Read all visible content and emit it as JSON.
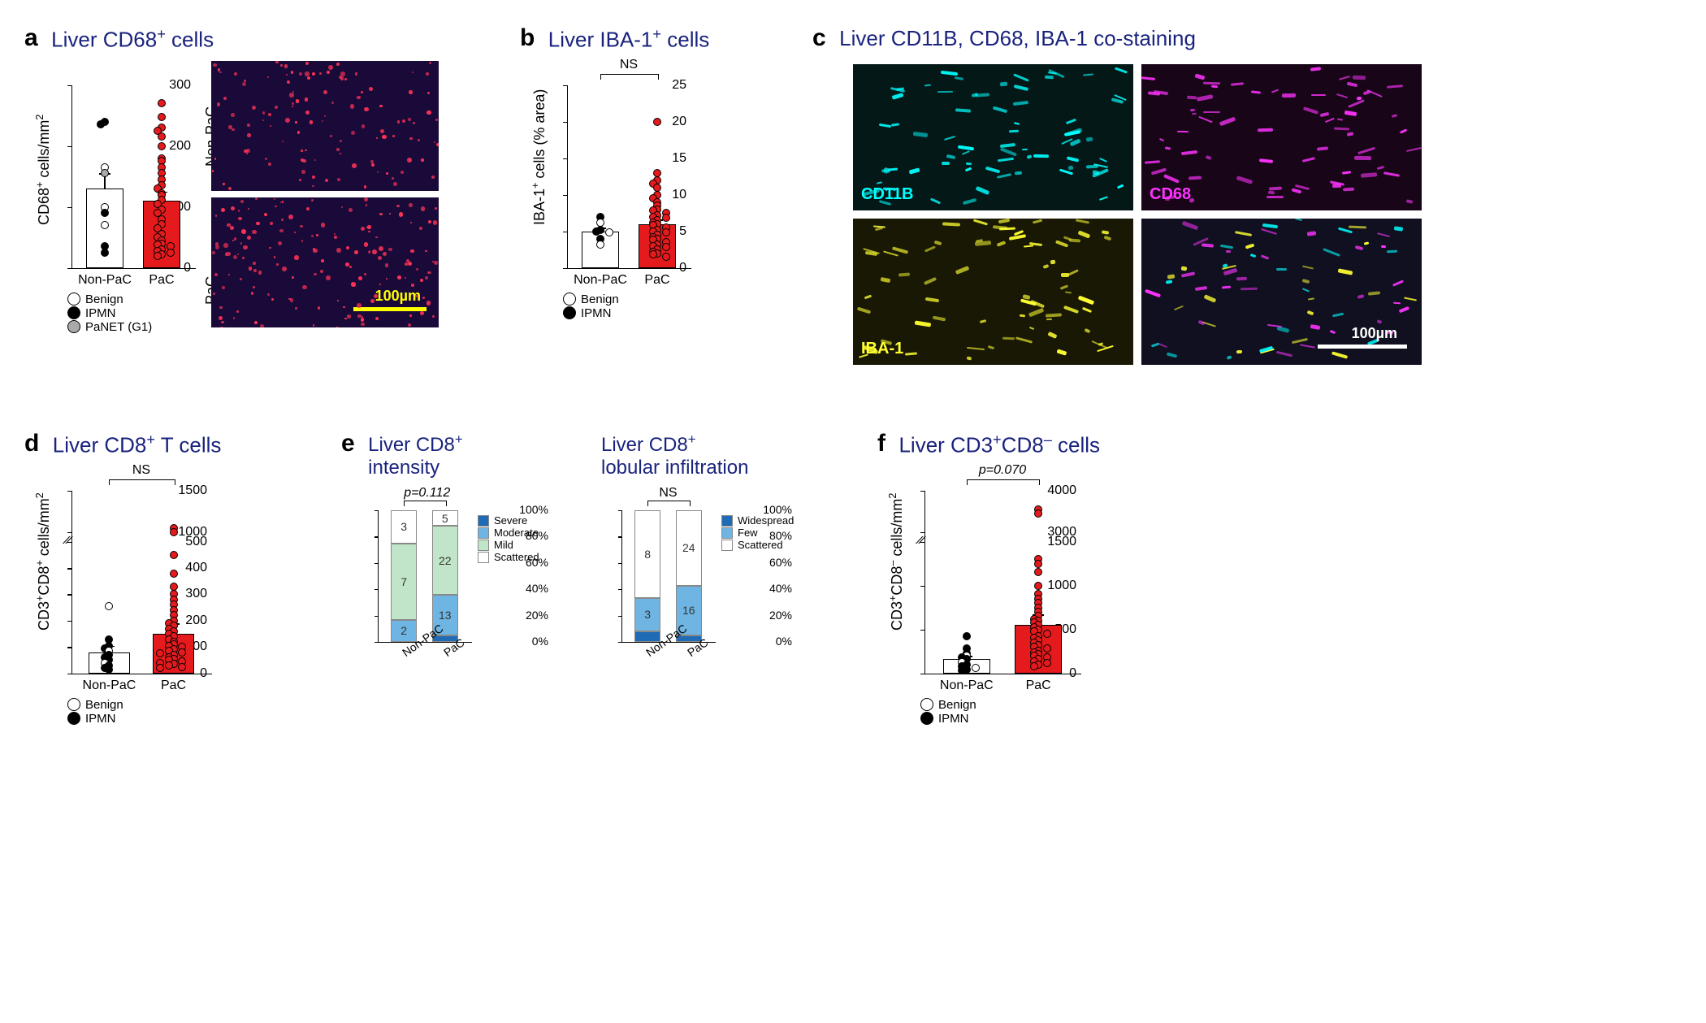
{
  "panel_a": {
    "label": "a",
    "title": "Liver CD68⁺ cells",
    "chart": {
      "ylabel": "CD68⁺ cells/mm²",
      "ylim": [
        0,
        300
      ],
      "ytick_step": 100,
      "categories": [
        "Non-PaC",
        "PaC"
      ],
      "bars": [
        {
          "value": 130,
          "fill": "#ffffff",
          "err": 25
        },
        {
          "value": 110,
          "fill": "#e41a1c",
          "err": 15
        }
      ],
      "points_nonpac": [
        {
          "y": 240,
          "fill": "#000"
        },
        {
          "y": 235,
          "fill": "#000"
        },
        {
          "y": 165,
          "fill": "#fff"
        },
        {
          "y": 155,
          "fill": "#aaa"
        },
        {
          "y": 100,
          "fill": "#fff"
        },
        {
          "y": 90,
          "fill": "#000"
        },
        {
          "y": 70,
          "fill": "#fff"
        },
        {
          "y": 35,
          "fill": "#000"
        },
        {
          "y": 25,
          "fill": "#000"
        }
      ],
      "points_pac": [
        {
          "y": 270
        },
        {
          "y": 248
        },
        {
          "y": 230
        },
        {
          "y": 225
        },
        {
          "y": 215
        },
        {
          "y": 200
        },
        {
          "y": 180
        },
        {
          "y": 175
        },
        {
          "y": 165
        },
        {
          "y": 155
        },
        {
          "y": 145
        },
        {
          "y": 135
        },
        {
          "y": 130
        },
        {
          "y": 122
        },
        {
          "y": 120
        },
        {
          "y": 112
        },
        {
          "y": 105
        },
        {
          "y": 95
        },
        {
          "y": 90
        },
        {
          "y": 80
        },
        {
          "y": 72
        },
        {
          "y": 65
        },
        {
          "y": 55
        },
        {
          "y": 50
        },
        {
          "y": 45
        },
        {
          "y": 40
        },
        {
          "y": 38
        },
        {
          "y": 35
        },
        {
          "y": 30
        },
        {
          "y": 28
        },
        {
          "y": 25
        },
        {
          "y": 22
        },
        {
          "y": 20
        }
      ],
      "pac_point_fill": "#e41a1c",
      "legend": [
        {
          "fill": "#ffffff",
          "label": "Benign"
        },
        {
          "fill": "#000000",
          "label": "IPMN"
        },
        {
          "fill": "#aaaaaa",
          "label": "PaNET (G1)"
        }
      ]
    },
    "micrographs": {
      "top_label": "Non-PaC",
      "bottom_label": "PaC",
      "bg": "#1a0a3a",
      "dot_color": "#ff3355",
      "scale_bar_color": "#ffff00",
      "scale_text": "100µm"
    }
  },
  "panel_b": {
    "label": "b",
    "title": "Liver IBA-1⁺ cells",
    "chart": {
      "ylabel": "IBA-1⁺ cells (% area)",
      "ylim": [
        0,
        25
      ],
      "ytick_step": 5,
      "categories": [
        "Non-PaC",
        "PaC"
      ],
      "sig": "NS",
      "bars": [
        {
          "value": 5.0,
          "fill": "#ffffff",
          "err": 0.5
        },
        {
          "value": 6.0,
          "fill": "#e41a1c",
          "err": 0.6
        }
      ],
      "points_nonpac": [
        {
          "y": 7.0,
          "fill": "#000"
        },
        {
          "y": 6.2,
          "fill": "#fff"
        },
        {
          "y": 5.2,
          "fill": "#000"
        },
        {
          "y": 5.0,
          "fill": "#000"
        },
        {
          "y": 4.8,
          "fill": "#fff"
        },
        {
          "y": 4.0,
          "fill": "#000"
        },
        {
          "y": 3.2,
          "fill": "#fff"
        }
      ],
      "points_pac": [
        {
          "y": 20
        },
        {
          "y": 13
        },
        {
          "y": 12
        },
        {
          "y": 11.5
        },
        {
          "y": 11
        },
        {
          "y": 10
        },
        {
          "y": 9.5
        },
        {
          "y": 9
        },
        {
          "y": 8.5
        },
        {
          "y": 8
        },
        {
          "y": 7.8
        },
        {
          "y": 7.5
        },
        {
          "y": 7.2
        },
        {
          "y": 7
        },
        {
          "y": 6.8
        },
        {
          "y": 6.5
        },
        {
          "y": 6.2
        },
        {
          "y": 6
        },
        {
          "y": 5.8
        },
        {
          "y": 5.5
        },
        {
          "y": 5.2
        },
        {
          "y": 5
        },
        {
          "y": 4.8
        },
        {
          "y": 4.5
        },
        {
          "y": 4.2
        },
        {
          "y": 4
        },
        {
          "y": 3.8
        },
        {
          "y": 3.5
        },
        {
          "y": 3.2
        },
        {
          "y": 3
        },
        {
          "y": 2.8
        },
        {
          "y": 2.5
        },
        {
          "y": 2.2
        },
        {
          "y": 2
        },
        {
          "y": 1.8
        },
        {
          "y": 1.5
        }
      ],
      "pac_point_fill": "#e41a1c",
      "legend": [
        {
          "fill": "#ffffff",
          "label": "Benign"
        },
        {
          "fill": "#000000",
          "label": "IPMN"
        }
      ]
    }
  },
  "panel_c": {
    "label": "c",
    "title": "Liver CD11B, CD68, IBA-1 co-staining",
    "panels": [
      {
        "label": "CD11B",
        "color": "#00ffff",
        "bg": "#051818"
      },
      {
        "label": "CD68",
        "color": "#ff33ff",
        "bg": "#180518"
      },
      {
        "label": "IBA-1",
        "color": "#ffff33",
        "bg": "#181805"
      },
      {
        "label": "",
        "color": "#ffffff",
        "bg": "#101020"
      }
    ],
    "scale_text": "100µm",
    "scale_bar_color": "#ffffff"
  },
  "panel_d": {
    "label": "d",
    "title": "Liver CD8⁺ T cells",
    "chart": {
      "ylabel": "CD3⁺CD8⁺ cells/mm²",
      "yticks": [
        0,
        100,
        200,
        300,
        400,
        500,
        1000,
        1500
      ],
      "break_at": 500,
      "categories": [
        "Non-PaC",
        "PaC"
      ],
      "sig": "NS",
      "bars": [
        {
          "value": 80,
          "fill": "#ffffff",
          "err": 25
        },
        {
          "value": 150,
          "fill": "#e41a1c",
          "err": 40
        }
      ],
      "points_nonpac": [
        {
          "y": 255,
          "fill": "#fff"
        },
        {
          "y": 130,
          "fill": "#000"
        },
        {
          "y": 105,
          "fill": "#000"
        },
        {
          "y": 95,
          "fill": "#000"
        },
        {
          "y": 85,
          "fill": "#fff"
        },
        {
          "y": 70,
          "fill": "#000"
        },
        {
          "y": 60,
          "fill": "#000"
        },
        {
          "y": 50,
          "fill": "#000"
        },
        {
          "y": 40,
          "fill": "#fff"
        },
        {
          "y": 30,
          "fill": "#000"
        },
        {
          "y": 20,
          "fill": "#000"
        },
        {
          "y": 15,
          "fill": "#000"
        }
      ],
      "points_pac": [
        {
          "y": 1050
        },
        {
          "y": 1000
        },
        {
          "y": 450
        },
        {
          "y": 380
        },
        {
          "y": 330
        },
        {
          "y": 300
        },
        {
          "y": 280
        },
        {
          "y": 260
        },
        {
          "y": 240
        },
        {
          "y": 220
        },
        {
          "y": 200
        },
        {
          "y": 190
        },
        {
          "y": 180
        },
        {
          "y": 170
        },
        {
          "y": 160
        },
        {
          "y": 150
        },
        {
          "y": 140
        },
        {
          "y": 130
        },
        {
          "y": 120
        },
        {
          "y": 110
        },
        {
          "y": 105
        },
        {
          "y": 100
        },
        {
          "y": 90
        },
        {
          "y": 85
        },
        {
          "y": 80
        },
        {
          "y": 75
        },
        {
          "y": 70
        },
        {
          "y": 60
        },
        {
          "y": 55
        },
        {
          "y": 50
        },
        {
          "y": 45
        },
        {
          "y": 40
        },
        {
          "y": 35
        },
        {
          "y": 30
        },
        {
          "y": 25
        },
        {
          "y": 20
        }
      ],
      "pac_point_fill": "#e41a1c",
      "legend": [
        {
          "fill": "#ffffff",
          "label": "Benign"
        },
        {
          "fill": "#000000",
          "label": "IPMN"
        }
      ]
    }
  },
  "panel_e": {
    "label": "e",
    "title1": "Liver CD8⁺ intensity",
    "title2": "Liver CD8⁺ lobular infiltration",
    "chart1": {
      "ytick_step": 20,
      "categories": [
        "Non-PaC",
        "PaC"
      ],
      "sig": "p=0.112",
      "colors": {
        "Severe": "#1f6bb5",
        "Moderate": "#6fb5e3",
        "Mild": "#c1e5c9",
        "Scattered": "#ffffff"
      },
      "legend": [
        "Severe",
        "Moderate",
        "Mild",
        "Scattered"
      ],
      "stacks": [
        {
          "segs": [
            {
              "k": "Severe",
              "n": 0,
              "p": 0
            },
            {
              "k": "Moderate",
              "n": 2,
              "p": 16.7
            },
            {
              "k": "Mild",
              "n": 7,
              "p": 58.3
            },
            {
              "k": "Scattered",
              "n": 3,
              "p": 25
            }
          ]
        },
        {
          "segs": [
            {
              "k": "Severe",
              "n": 2,
              "p": 4.8
            },
            {
              "k": "Moderate",
              "n": 13,
              "p": 31
            },
            {
              "k": "Mild",
              "n": 22,
              "p": 52.3
            },
            {
              "k": "Scattered",
              "n": 5,
              "p": 11.9
            }
          ]
        }
      ]
    },
    "chart2": {
      "ytick_step": 20,
      "categories": [
        "Non-PaC",
        "PaC"
      ],
      "sig": "NS",
      "colors": {
        "Widespread": "#1f6bb5",
        "Few": "#6fb5e3",
        "Scattered": "#ffffff"
      },
      "legend": [
        "Widespread",
        "Few",
        "Scattered"
      ],
      "stacks": [
        {
          "segs": [
            {
              "k": "Widespread",
              "n": 1,
              "p": 8.3
            },
            {
              "k": "Few",
              "n": 3,
              "p": 25
            },
            {
              "k": "Scattered",
              "n": 8,
              "p": 66.7
            }
          ]
        },
        {
          "segs": [
            {
              "k": "Widespread",
              "n": 2,
              "p": 4.8
            },
            {
              "k": "Few",
              "n": 16,
              "p": 38.1
            },
            {
              "k": "Scattered",
              "n": 24,
              "p": 57.1
            }
          ]
        }
      ]
    }
  },
  "panel_f": {
    "label": "f",
    "title": "Liver CD3⁺CD8⁻ cells",
    "chart": {
      "ylabel": "CD3⁺CD8⁻ cells/mm²",
      "yticks": [
        0,
        500,
        1000,
        1500,
        3000,
        4000
      ],
      "break_at": 1500,
      "categories": [
        "Non-PaC",
        "PaC"
      ],
      "sig": "p=0.070",
      "bars": [
        {
          "value": 160,
          "fill": "#ffffff",
          "err": 40
        },
        {
          "value": 550,
          "fill": "#e41a1c",
          "err": 120
        }
      ],
      "points_nonpac": [
        {
          "y": 420,
          "fill": "#000"
        },
        {
          "y": 280,
          "fill": "#000"
        },
        {
          "y": 230,
          "fill": "#000"
        },
        {
          "y": 200,
          "fill": "#fff"
        },
        {
          "y": 180,
          "fill": "#000"
        },
        {
          "y": 160,
          "fill": "#000"
        },
        {
          "y": 130,
          "fill": "#fff"
        },
        {
          "y": 100,
          "fill": "#000"
        },
        {
          "y": 80,
          "fill": "#000"
        },
        {
          "y": 60,
          "fill": "#fff"
        },
        {
          "y": 40,
          "fill": "#000"
        },
        {
          "y": 30,
          "fill": "#000"
        }
      ],
      "points_pac": [
        {
          "y": 3550
        },
        {
          "y": 3450
        },
        {
          "y": 1300
        },
        {
          "y": 1250
        },
        {
          "y": 1150
        },
        {
          "y": 1000
        },
        {
          "y": 900
        },
        {
          "y": 850
        },
        {
          "y": 800
        },
        {
          "y": 750
        },
        {
          "y": 700
        },
        {
          "y": 650
        },
        {
          "y": 620
        },
        {
          "y": 600
        },
        {
          "y": 580
        },
        {
          "y": 550
        },
        {
          "y": 520
        },
        {
          "y": 500
        },
        {
          "y": 480
        },
        {
          "y": 450
        },
        {
          "y": 420
        },
        {
          "y": 400
        },
        {
          "y": 380
        },
        {
          "y": 350
        },
        {
          "y": 320
        },
        {
          "y": 300
        },
        {
          "y": 280
        },
        {
          "y": 260
        },
        {
          "y": 240
        },
        {
          "y": 220
        },
        {
          "y": 200
        },
        {
          "y": 180
        },
        {
          "y": 160
        },
        {
          "y": 140
        },
        {
          "y": 120
        },
        {
          "y": 100
        },
        {
          "y": 80
        }
      ],
      "pac_point_fill": "#e41a1c",
      "legend": [
        {
          "fill": "#ffffff",
          "label": "Benign"
        },
        {
          "fill": "#000000",
          "label": "IPMN"
        }
      ]
    }
  }
}
